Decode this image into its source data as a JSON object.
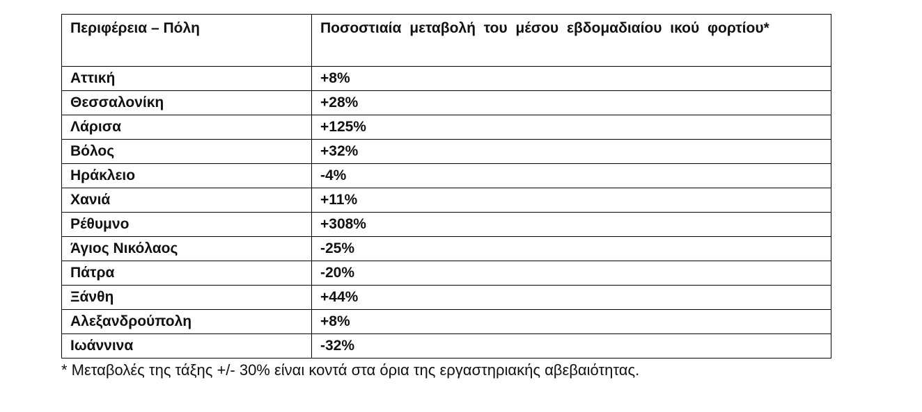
{
  "table": {
    "headers": {
      "region": "Περιφέρεια – Πόλη",
      "change": "Ποσοστιαία μεταβολή του μέσου εβδομαδιαίου ικού φορτίου*"
    },
    "rows": [
      {
        "region": "Αττική",
        "change": "+8%"
      },
      {
        "region": "Θεσσαλονίκη",
        "change": "+28%"
      },
      {
        "region": "Λάρισα",
        "change": "+125%"
      },
      {
        "region": "Βόλος",
        "change": "+32%"
      },
      {
        "region": "Ηράκλειο",
        "change": "-4%"
      },
      {
        "region": "Χανιά",
        "change": "+11%"
      },
      {
        "region": "Ρέθυμνο",
        "change": "+308%"
      },
      {
        "region": "Άγιος Νικόλαος",
        "change": "-25%"
      },
      {
        "region": "Πάτρα",
        "change": "-20%"
      },
      {
        "region": "Ξάνθη",
        "change": "+44%"
      },
      {
        "region": "Αλεξανδρούπολη",
        "change": "+8%"
      },
      {
        "region": "Ιωάννινα",
        "change": "-32%"
      }
    ]
  },
  "footnote": "* Μεταβολές της τάξης +/- 30% είναι κοντά στα όρια της εργαστηριακής αβεβαιότητας."
}
